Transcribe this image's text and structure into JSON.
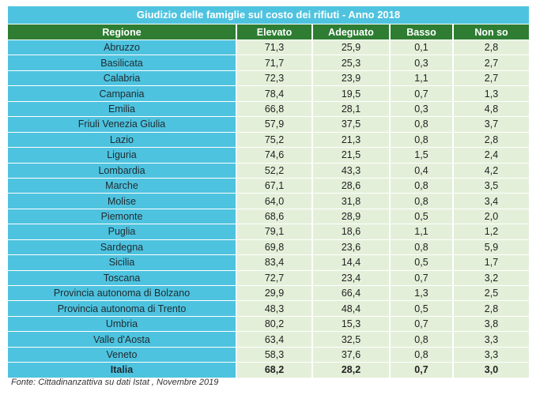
{
  "title": "Giudizio delle famiglie sul costo dei rifiuti - Anno 2018",
  "columns": [
    "Regione",
    "Elevato",
    "Adeguato",
    "Basso",
    "Non so"
  ],
  "rows": [
    [
      "Abruzzo",
      "71,3",
      "25,9",
      "0,1",
      "2,8"
    ],
    [
      "Basilicata",
      "71,7",
      "25,3",
      "0,3",
      "2,7"
    ],
    [
      "Calabria",
      "72,3",
      "23,9",
      "1,1",
      "2,7"
    ],
    [
      "Campania",
      "78,4",
      "19,5",
      "0,7",
      "1,3"
    ],
    [
      "Emilia",
      "66,8",
      "28,1",
      "0,3",
      "4,8"
    ],
    [
      "Friuli Venezia Giulia",
      "57,9",
      "37,5",
      "0,8",
      "3,7"
    ],
    [
      "Lazio",
      "75,2",
      "21,3",
      "0,8",
      "2,8"
    ],
    [
      "Liguria",
      "74,6",
      "21,5",
      "1,5",
      "2,4"
    ],
    [
      "Lombardia",
      "52,2",
      "43,3",
      "0,4",
      "4,2"
    ],
    [
      "Marche",
      "67,1",
      "28,6",
      "0,8",
      "3,5"
    ],
    [
      "Molise",
      "64,0",
      "31,8",
      "0,8",
      "3,4"
    ],
    [
      "Piemonte",
      "68,6",
      "28,9",
      "0,5",
      "2,0"
    ],
    [
      "Puglia",
      "79,1",
      "18,6",
      "1,1",
      "1,2"
    ],
    [
      "Sardegna",
      "69,8",
      "23,6",
      "0,8",
      "5,9"
    ],
    [
      "Sicilia",
      "83,4",
      "14,4",
      "0,5",
      "1,7"
    ],
    [
      "Toscana",
      "72,7",
      "23,4",
      "0,7",
      "3,2"
    ],
    [
      "Provincia autonoma di Bolzano",
      "29,9",
      "66,4",
      "1,3",
      "2,5"
    ],
    [
      "Provincia autonoma di Trento",
      "48,3",
      "48,4",
      "0,5",
      "2,8"
    ],
    [
      "Umbria",
      "80,2",
      "15,3",
      "0,7",
      "3,8"
    ],
    [
      "Valle d'Aosta",
      "63,4",
      "32,5",
      "0,8",
      "3,3"
    ],
    [
      "Veneto",
      "58,3",
      "37,6",
      "0,8",
      "3,3"
    ]
  ],
  "total": [
    "Italia",
    "68,2",
    "28,2",
    "0,7",
    "3,0"
  ],
  "source": "Fonte: Cittadinanzattiva su dati Istat , Novembre 2019",
  "colors": {
    "title_bg": "#4ec3df",
    "header_bg": "#2e7d32",
    "region_bg": "#4ec3df",
    "value_bg": "#e4efd9"
  }
}
